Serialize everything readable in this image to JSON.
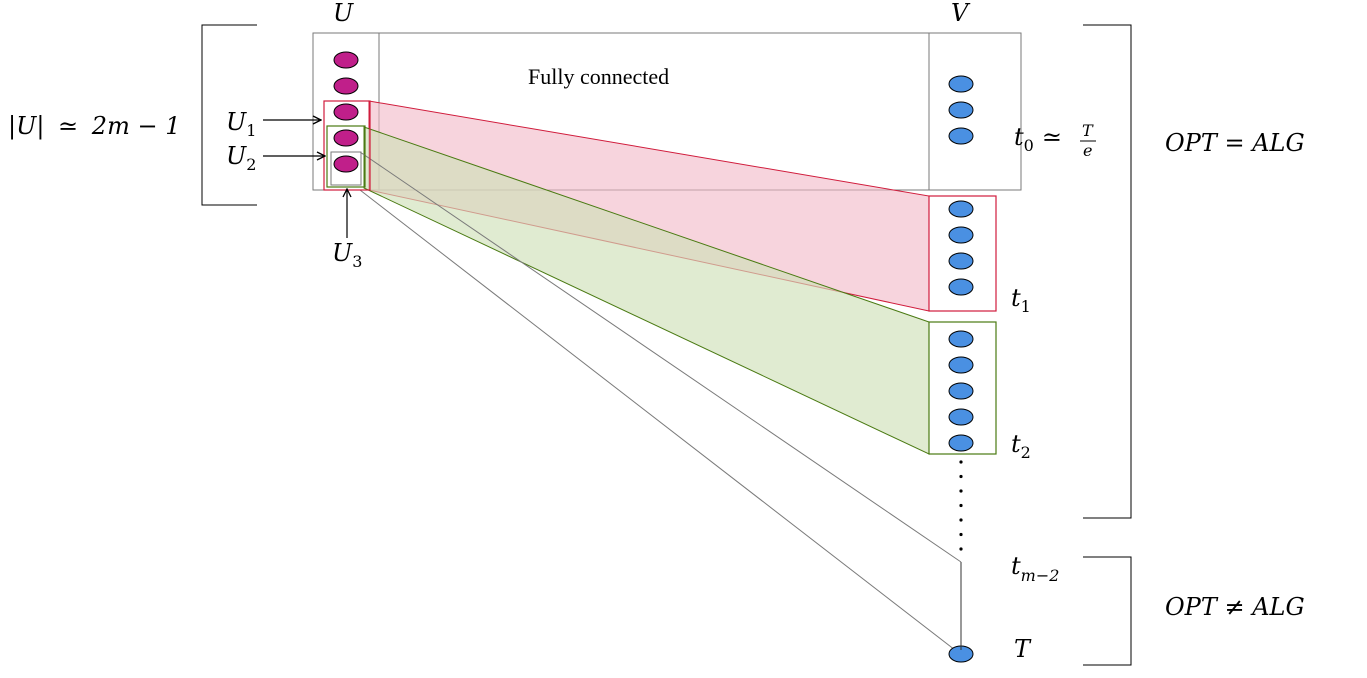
{
  "labels": {
    "U": "U",
    "V": "V",
    "fully_connected": "Fully connected",
    "u_size": {
      "lhs": "|U|",
      "rel": "≃",
      "rhs": "2m − 1"
    },
    "U1": {
      "base": "U",
      "sub": "1"
    },
    "U2": {
      "base": "U",
      "sub": "2"
    },
    "U3": {
      "base": "U",
      "sub": "3"
    },
    "t0": {
      "base": "t",
      "sub": "0",
      "rel": "≃",
      "num": "T",
      "den": "e"
    },
    "t1": {
      "base": "t",
      "sub": "1"
    },
    "t2": {
      "base": "t",
      "sub": "2"
    },
    "tm2": {
      "base": "t",
      "sub": "m−2"
    },
    "T": "T",
    "opt_eq": "OPT = ALG",
    "opt_neq": "OPT ≠ ALG"
  },
  "colors": {
    "u_node": "#c01f8a",
    "v_node": "#4a90e2",
    "red": "#d01c3c",
    "red_fill": "#f2b8c6",
    "green": "#4a7a12",
    "green_fill": "#cfe0b8",
    "gray": "#7a7a7a"
  },
  "nodes": {
    "U_count": 5,
    "V_t0_count": 3,
    "V_t1_count": 4,
    "V_t2_count": 5
  }
}
